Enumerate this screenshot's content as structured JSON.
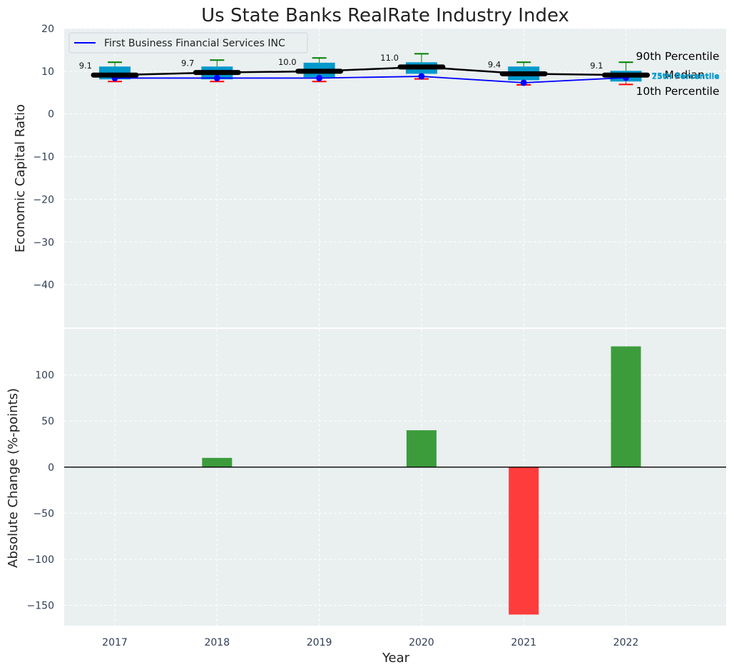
{
  "chart_data": [
    {
      "type": "box-line",
      "title": "Us State Banks RealRate Industry Index",
      "xlabel": "",
      "ylabel": "Economic Capital Ratio",
      "ylim": [
        -50,
        20
      ],
      "yticks": [
        20,
        10,
        0,
        -10,
        -20,
        -30,
        -40
      ],
      "categories": [
        "2017",
        "2018",
        "2019",
        "2020",
        "2021",
        "2022"
      ],
      "legend": {
        "position": "top-left",
        "entries": [
          "First Business Financial Services INC"
        ]
      },
      "series": [
        {
          "name": "First Business Financial Services INC",
          "color": "#0000ff",
          "values": [
            8.4,
            8.4,
            8.4,
            8.8,
            7.3,
            8.5
          ]
        },
        {
          "name": "Median",
          "color": "#000000",
          "values": [
            9.1,
            9.7,
            10.0,
            11.0,
            9.4,
            9.1
          ]
        }
      ],
      "median_labels": [
        "9.1",
        "9.7",
        "10.0",
        "11.0",
        "9.4",
        "9.1"
      ],
      "boxes": {
        "p10": [
          7.6,
          7.6,
          7.6,
          8.2,
          6.8,
          6.9
        ],
        "p25": [
          8.1,
          8.1,
          8.6,
          9.4,
          7.9,
          7.6
        ],
        "p75": [
          11.1,
          11.1,
          12.0,
          12.1,
          11.1,
          10.1
        ],
        "p90": [
          12.1,
          12.6,
          13.1,
          14.1,
          12.1,
          12.1
        ]
      },
      "annotations": {
        "p90": "90th Percentile",
        "median": "Median",
        "p10": "10th Percentile",
        "p75": "75th Percentile",
        "p25": "25th Percentile"
      },
      "colors": {
        "box": "#0099cc",
        "p90_whisker": "#008000",
        "p10_whisker": "#ff0000",
        "background": "#eaeff0"
      }
    },
    {
      "type": "bar",
      "xlabel": "Year",
      "ylabel": "Absolute Change (%-points)",
      "ylim": [
        -172,
        150
      ],
      "yticks": [
        100,
        50,
        0,
        -50,
        -100,
        -150
      ],
      "categories": [
        "2017",
        "2018",
        "2019",
        "2020",
        "2021",
        "2022"
      ],
      "values": [
        0,
        10,
        0,
        40,
        -160,
        131
      ],
      "colors": {
        "positive": "#3c9c3c",
        "negative": "#ff3c3c"
      }
    }
  ]
}
